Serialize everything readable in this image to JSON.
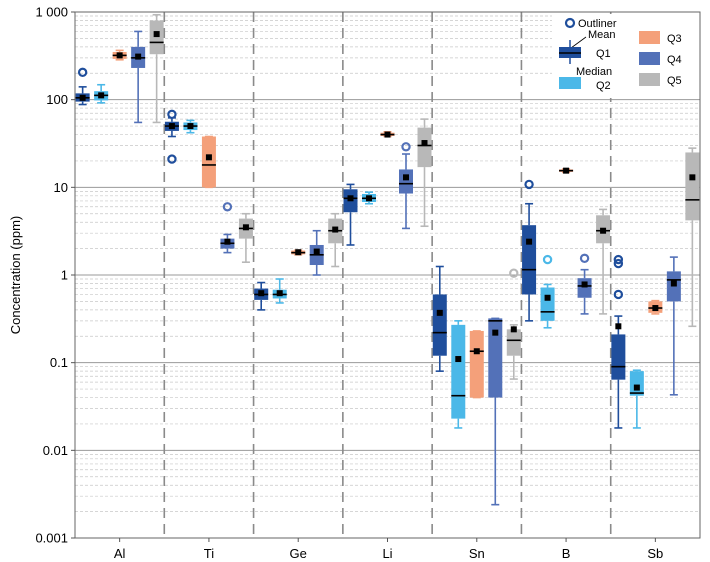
{
  "chart_data": {
    "type": "boxplot",
    "ylabel": "Concentration (ppm)",
    "y_scale": "log",
    "ylim": [
      0.001,
      1000
    ],
    "y_tick_labels": [
      "0.001",
      "0.01",
      "0.1",
      "1",
      "10",
      "100",
      "1 000"
    ],
    "y_tick_values": [
      0.001,
      0.01,
      0.1,
      1,
      10,
      100,
      1000
    ],
    "categories": [
      "Al",
      "Ti",
      "Ge",
      "Li",
      "Sn",
      "B",
      "Sb"
    ],
    "series": [
      {
        "name": "Q1",
        "color": "#1f4e9c"
      },
      {
        "name": "Q2",
        "color": "#4bb8e8"
      },
      {
        "name": "Q3",
        "color": "#f4a07a"
      },
      {
        "name": "Q4",
        "color": "#5371b8"
      },
      {
        "name": "Q5",
        "color": "#b8b8b8"
      }
    ],
    "legend": {
      "position": "top-right",
      "outliner_label": "Outliner",
      "mean_label": "Mean",
      "median_label": "Median"
    },
    "boxes": [
      {
        "category": "Al",
        "series": "Q1",
        "whisker_low": 88,
        "q1": 95,
        "median": 105,
        "q3": 118,
        "whisker_high": 140,
        "mean": 105,
        "outliers": [
          205
        ]
      },
      {
        "category": "Al",
        "series": "Q2",
        "whisker_low": 92,
        "q1": 98,
        "median": 112,
        "q3": 125,
        "whisker_high": 148,
        "mean": 112,
        "outliers": []
      },
      {
        "category": "Al",
        "series": "Q3",
        "whisker_low": 285,
        "q1": 292,
        "median": 320,
        "q3": 350,
        "whisker_high": 365,
        "mean": 320,
        "outliers": []
      },
      {
        "category": "Al",
        "series": "Q4",
        "whisker_low": 55,
        "q1": 230,
        "median": 300,
        "q3": 400,
        "whisker_high": 600,
        "mean": 310,
        "outliers": []
      },
      {
        "category": "Al",
        "series": "Q5",
        "whisker_low": 55,
        "q1": 330,
        "median": 450,
        "q3": 800,
        "whisker_high": 930,
        "mean": 560,
        "outliers": []
      },
      {
        "category": "Ti",
        "series": "Q1",
        "whisker_low": 38,
        "q1": 44,
        "median": 50,
        "q3": 56,
        "whisker_high": 62,
        "mean": 50,
        "outliers": [
          68,
          21
        ]
      },
      {
        "category": "Ti",
        "series": "Q2",
        "whisker_low": 42,
        "q1": 45,
        "median": 50,
        "q3": 55,
        "whisker_high": 58,
        "mean": 50,
        "outliers": []
      },
      {
        "category": "Ti",
        "series": "Q3",
        "whisker_low": 10,
        "q1": 10,
        "median": 18,
        "q3": 38,
        "whisker_high": 38,
        "mean": 22,
        "outliers": []
      },
      {
        "category": "Ti",
        "series": "Q4",
        "whisker_low": 1.8,
        "q1": 2.0,
        "median": 2.3,
        "q3": 2.6,
        "whisker_high": 2.9,
        "mean": 2.4,
        "outliers": [
          6.0
        ]
      },
      {
        "category": "Ti",
        "series": "Q5",
        "whisker_low": 1.4,
        "q1": 2.6,
        "median": 3.4,
        "q3": 4.4,
        "whisker_high": 5.0,
        "mean": 3.5,
        "outliers": []
      },
      {
        "category": "Ge",
        "series": "Q1",
        "whisker_low": 0.4,
        "q1": 0.52,
        "median": 0.6,
        "q3": 0.7,
        "whisker_high": 0.82,
        "mean": 0.62,
        "outliers": []
      },
      {
        "category": "Ge",
        "series": "Q2",
        "whisker_low": 0.48,
        "q1": 0.54,
        "median": 0.6,
        "q3": 0.68,
        "whisker_high": 0.9,
        "mean": 0.62,
        "outliers": []
      },
      {
        "category": "Ge",
        "series": "Q3",
        "whisker_low": 1.7,
        "q1": 1.72,
        "median": 1.8,
        "q3": 1.9,
        "whisker_high": 1.92,
        "mean": 1.82,
        "outliers": []
      },
      {
        "category": "Ge",
        "series": "Q4",
        "whisker_low": 1.0,
        "q1": 1.3,
        "median": 1.7,
        "q3": 2.2,
        "whisker_high": 3.2,
        "mean": 1.85,
        "outliers": []
      },
      {
        "category": "Ge",
        "series": "Q5",
        "whisker_low": 1.25,
        "q1": 2.3,
        "median": 3.2,
        "q3": 4.4,
        "whisker_high": 5.0,
        "mean": 3.3,
        "outliers": []
      },
      {
        "category": "Li",
        "series": "Q1",
        "whisker_low": 2.2,
        "q1": 5.2,
        "median": 7.5,
        "q3": 9.5,
        "whisker_high": 10.8,
        "mean": 7.5,
        "outliers": []
      },
      {
        "category": "Li",
        "series": "Q2",
        "whisker_low": 6.5,
        "q1": 6.8,
        "median": 7.5,
        "q3": 8.4,
        "whisker_high": 8.8,
        "mean": 7.5,
        "outliers": []
      },
      {
        "category": "Li",
        "series": "Q3",
        "whisker_low": 38,
        "q1": 38.5,
        "median": 40,
        "q3": 42,
        "whisker_high": 43,
        "mean": 40,
        "outliers": []
      },
      {
        "category": "Li",
        "series": "Q4",
        "whisker_low": 3.4,
        "q1": 8.5,
        "median": 11,
        "q3": 16,
        "whisker_high": 24,
        "mean": 13,
        "outliers": [
          29
        ]
      },
      {
        "category": "Li",
        "series": "Q5",
        "whisker_low": 3.6,
        "q1": 17,
        "median": 30,
        "q3": 48,
        "whisker_high": 60,
        "mean": 32,
        "outliers": []
      },
      {
        "category": "Sn",
        "series": "Q1",
        "whisker_low": 0.08,
        "q1": 0.12,
        "median": 0.22,
        "q3": 0.6,
        "whisker_high": 1.25,
        "mean": 0.37,
        "outliers": []
      },
      {
        "category": "Sn",
        "series": "Q2",
        "whisker_low": 0.018,
        "q1": 0.023,
        "median": 0.042,
        "q3": 0.27,
        "whisker_high": 0.3,
        "mean": 0.11,
        "outliers": []
      },
      {
        "category": "Sn",
        "series": "Q3",
        "whisker_low": 0.04,
        "q1": 0.04,
        "median": 0.135,
        "q3": 0.23,
        "whisker_high": 0.23,
        "mean": 0.135,
        "outliers": []
      },
      {
        "category": "Sn",
        "series": "Q4",
        "whisker_low": 0.0024,
        "q1": 0.04,
        "median": 0.3,
        "q3": 0.32,
        "whisker_high": 0.32,
        "mean": 0.22,
        "outliers": []
      },
      {
        "category": "Sn",
        "series": "Q5",
        "whisker_low": 0.065,
        "q1": 0.12,
        "median": 0.18,
        "q3": 0.24,
        "whisker_high": 0.27,
        "mean": 0.24,
        "outliers": [
          1.05
        ]
      },
      {
        "category": "B",
        "series": "Q1",
        "whisker_low": 0.3,
        "q1": 0.6,
        "median": 1.15,
        "q3": 3.7,
        "whisker_high": 6.5,
        "mean": 2.4,
        "outliers": [
          10.8
        ]
      },
      {
        "category": "B",
        "series": "Q2",
        "whisker_low": 0.25,
        "q1": 0.3,
        "median": 0.38,
        "q3": 0.72,
        "whisker_high": 0.78,
        "mean": 0.55,
        "outliers": [
          1.5
        ]
      },
      {
        "category": "B",
        "series": "Q3",
        "whisker_low": 14.8,
        "q1": 15.0,
        "median": 15.5,
        "q3": 16.0,
        "whisker_high": 16.2,
        "mean": 15.5,
        "outliers": []
      },
      {
        "category": "B",
        "series": "Q4",
        "whisker_low": 0.36,
        "q1": 0.55,
        "median": 0.75,
        "q3": 0.92,
        "whisker_high": 1.15,
        "mean": 0.78,
        "outliers": [
          1.55
        ]
      },
      {
        "category": "B",
        "series": "Q5",
        "whisker_low": 0.36,
        "q1": 2.3,
        "median": 3.2,
        "q3": 4.8,
        "whisker_high": 5.6,
        "mean": 3.2,
        "outliers": []
      },
      {
        "category": "Sb",
        "series": "Q1",
        "whisker_low": 0.018,
        "q1": 0.064,
        "median": 0.09,
        "q3": 0.21,
        "whisker_high": 0.34,
        "mean": 0.26,
        "outliers": [
          0.6,
          1.35,
          1.5
        ]
      },
      {
        "category": "Sb",
        "series": "Q2",
        "whisker_low": 0.018,
        "q1": 0.042,
        "median": 0.045,
        "q3": 0.08,
        "whisker_high": 0.082,
        "mean": 0.052,
        "outliers": []
      },
      {
        "category": "Sb",
        "series": "Q3",
        "whisker_low": 0.36,
        "q1": 0.37,
        "median": 0.42,
        "q3": 0.5,
        "whisker_high": 0.51,
        "mean": 0.42,
        "outliers": []
      },
      {
        "category": "Sb",
        "series": "Q4",
        "whisker_low": 0.043,
        "q1": 0.5,
        "median": 0.88,
        "q3": 1.1,
        "whisker_high": 1.6,
        "mean": 0.8,
        "outliers": []
      },
      {
        "category": "Sb",
        "series": "Q5",
        "whisker_low": 0.26,
        "q1": 4.2,
        "median": 7.2,
        "q3": 25,
        "whisker_high": 28,
        "mean": 13,
        "outliers": []
      }
    ]
  }
}
